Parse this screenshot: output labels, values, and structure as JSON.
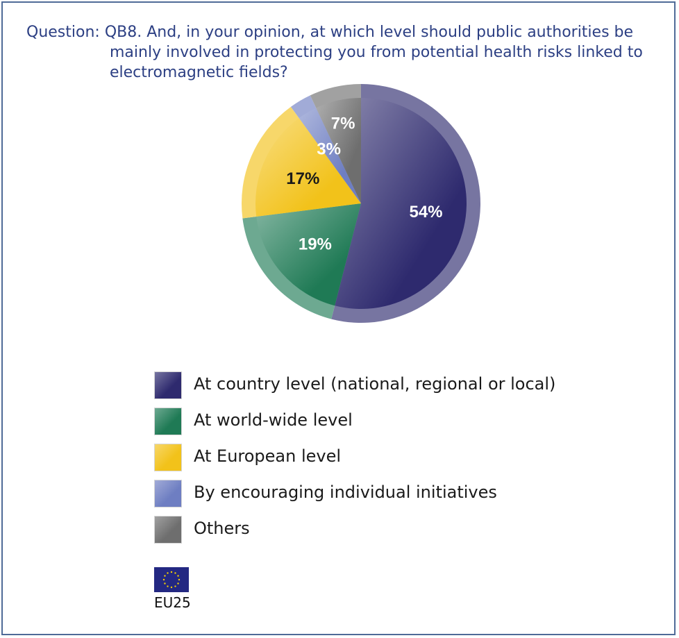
{
  "question": {
    "prefix": "Question:",
    "line1": "QB8. And, in your opinion, at which level should public authorities be",
    "line2": "mainly involved in protecting you from potential health risks linked to",
    "line3": "electromagnetic fields?"
  },
  "chart_data": {
    "type": "pie",
    "title": "",
    "slices": [
      {
        "name": "At country level (national, regional or local)",
        "value": 54,
        "label": "54%",
        "color": "#2e2a6e",
        "label_color": "#ffffff"
      },
      {
        "name": "At world-wide level",
        "value": 19,
        "label": "19%",
        "color": "#1f7a55",
        "label_color": "#ffffff"
      },
      {
        "name": "At European level",
        "value": 17,
        "label": "17%",
        "color": "#f2c21a",
        "label_color": "#1a1a1a"
      },
      {
        "name": "By encouraging individual initiatives",
        "value": 3,
        "label": "3%",
        "color": "#6e7ec2",
        "label_color": "#ffffff"
      },
      {
        "name": "Others",
        "value": 7,
        "label": "7%",
        "color": "#6e6e6e",
        "label_color": "#ffffff"
      }
    ],
    "legend_position": "bottom"
  },
  "legend": {
    "items": [
      {
        "label": "At country level (national, regional or local)",
        "color": "#2e2a6e"
      },
      {
        "label": "At world-wide level",
        "color": "#1f7a55"
      },
      {
        "label": "At European level",
        "color": "#f2c21a"
      },
      {
        "label": "By encouraging individual initiatives",
        "color": "#6e7ec2"
      },
      {
        "label": "Others",
        "color": "#6e6e6e"
      }
    ]
  },
  "footer": {
    "flag_icon": "eu-flag-icon",
    "label": "EU25"
  }
}
